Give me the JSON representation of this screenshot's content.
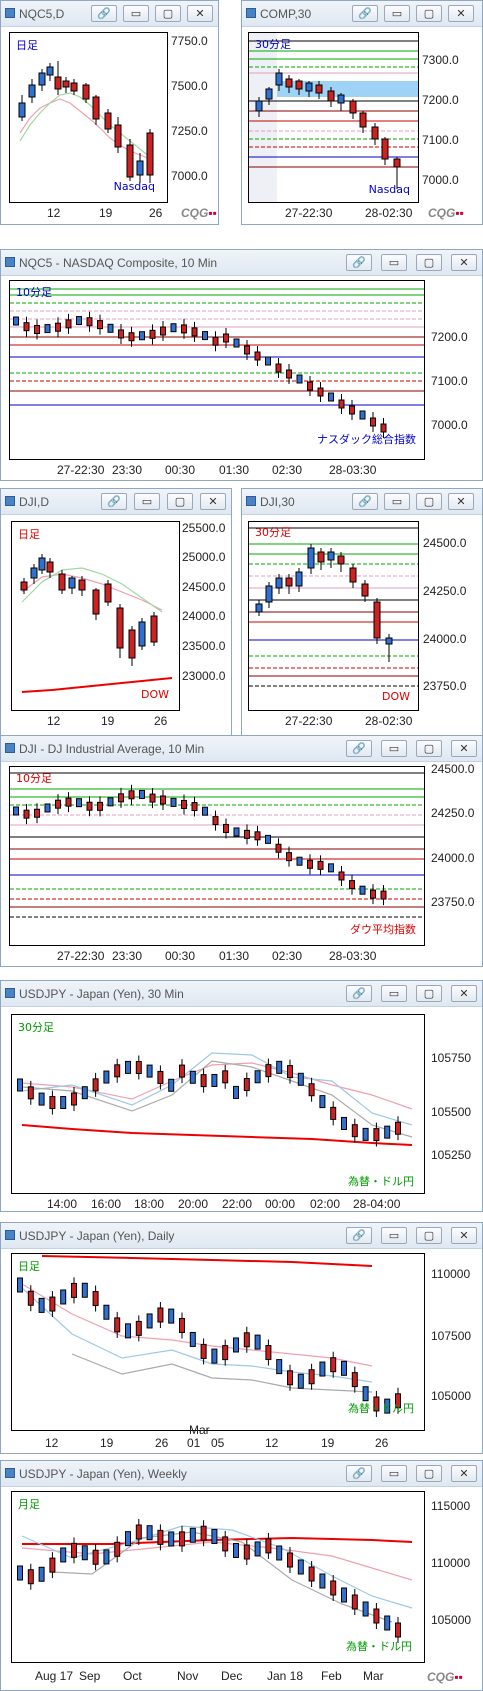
{
  "windows": [
    {
      "title": "NQC5,D",
      "frame_label": "日足",
      "frame_color": "#0000cc",
      "name_label": "Nasdaq",
      "name_color": "#0000cc",
      "y_ticks": [
        "7750.0",
        "7500.0",
        "7250.0",
        "7000.0"
      ],
      "x_ticks": [
        "12",
        "19",
        "26"
      ]
    },
    {
      "title": "COMP,30",
      "frame_label": "30分足",
      "frame_color": "#0000cc",
      "name_label": "Nasdaq",
      "name_color": "#0000cc",
      "y_ticks": [
        "7300.0",
        "7200.0",
        "7100.0",
        "7000.0"
      ],
      "x_ticks": [
        "27-22:30",
        "28-02:30"
      ]
    },
    {
      "title": "NQC5 - NASDAQ Composite, 10 Min",
      "frame_label": "10分足",
      "frame_color": "#0000cc",
      "name_label": "ナスダック総合指数",
      "name_color": "#0000cc",
      "y_ticks": [
        "7200.0",
        "7100.0",
        "7000.0"
      ],
      "x_ticks": [
        "27-22:30",
        "23:30",
        "00:30",
        "01:30",
        "02:30",
        "28-03:30"
      ]
    },
    {
      "title": "DJI,D",
      "frame_label": "日足",
      "frame_color": "#dd0000",
      "name_label": "DOW",
      "name_color": "#dd0000",
      "y_ticks": [
        "25500.0",
        "25000.0",
        "24500.0",
        "24000.0",
        "23500.0",
        "23000.0"
      ],
      "x_ticks": [
        "12",
        "19",
        "26"
      ]
    },
    {
      "title": "DJI,30",
      "frame_label": "30分足",
      "frame_color": "#dd0000",
      "name_label": "DOW",
      "name_color": "#dd0000",
      "y_ticks": [
        "24500.0",
        "24250.0",
        "24000.0",
        "23750.0"
      ],
      "x_ticks": [
        "27-22:30",
        "28-02:30"
      ]
    },
    {
      "title": "DJI - DJ Industrial Average, 10 Min",
      "frame_label": "10分足",
      "frame_color": "#dd0000",
      "name_label": "ダウ平均指数",
      "name_color": "#dd0000",
      "y_ticks": [
        "24500.0",
        "24250.0",
        "24000.0",
        "23750.0"
      ],
      "x_ticks": [
        "27-22:30",
        "23:30",
        "00:30",
        "01:30",
        "02:30",
        "28-03:30"
      ]
    },
    {
      "title": "USDJPY - Japan (Yen), 30 Min",
      "frame_label": "30分足",
      "frame_color": "#009900",
      "name_label": "為替・ドル円",
      "name_color": "#009900",
      "y_ticks": [
        "105750",
        "105500",
        "105250"
      ],
      "x_ticks": [
        "14:00",
        "16:00",
        "18:00",
        "20:00",
        "22:00",
        "00:00",
        "02:00",
        "28-04:00"
      ]
    },
    {
      "title": "USDJPY - Japan (Yen), Daily",
      "frame_label": "日足",
      "frame_color": "#009900",
      "name_label": "為替・ドル円",
      "name_color": "#009900",
      "y_ticks": [
        "110000",
        "107500",
        "105000"
      ],
      "x_ticks": [
        "12",
        "19",
        "26",
        "01",
        "05",
        "12",
        "19",
        "26"
      ],
      "x_sub": "Mar"
    },
    {
      "title": "USDJPY - Japan (Yen), Weekly",
      "frame_label": "月足",
      "frame_color": "#009900",
      "name_label": "為替・ドル円",
      "name_color": "#009900",
      "y_ticks": [
        "115000",
        "110000",
        "105000"
      ],
      "x_ticks": [
        "Aug 17",
        "Sep",
        "Oct",
        "Nov",
        "Dec",
        "Jan 18",
        "Feb",
        "Mar"
      ]
    }
  ],
  "buttons": {
    "link": "🔗",
    "minimize": "▭",
    "maximize": "▢",
    "close": "✕"
  },
  "brand": {
    "text": "CQG",
    "mark": "▪▪"
  }
}
